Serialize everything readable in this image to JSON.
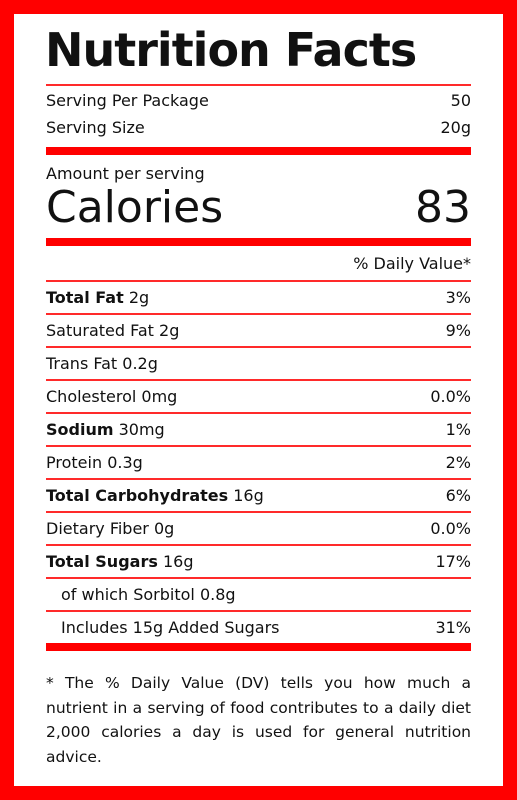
{
  "title": "Nutrition Facts",
  "serving": {
    "per_package_label": "Serving Per Package",
    "per_package_value": "50",
    "size_label": "Serving Size",
    "size_value": "20g"
  },
  "amount_label": "Amount per serving",
  "calories": {
    "label": "Calories",
    "value": "83"
  },
  "daily_value_header": "% Daily Value*",
  "nutrients": [
    {
      "name": "Total Fat",
      "amount": "2g",
      "dv": "3%"
    },
    {
      "name": "Saturated Fat",
      "amount": "2g",
      "dv": "9%"
    },
    {
      "name": "Trans Fat",
      "amount": "0.2g",
      "dv": ""
    },
    {
      "name": "Cholesterol",
      "amount": "0mg",
      "dv": "0.0%"
    },
    {
      "name": "Sodium",
      "amount": "30mg",
      "dv": "1%"
    },
    {
      "name": "Protein",
      "amount": "0.3g",
      "dv": "2%"
    },
    {
      "name": "Total Carbohydrates",
      "amount": "16g",
      "dv": "6%"
    },
    {
      "name": "Dietary Fiber",
      "amount": "0g",
      "dv": "0.0%"
    },
    {
      "name": "Total Sugars",
      "amount": "16g",
      "dv": "17%"
    },
    {
      "name": "of which Sorbitol",
      "amount": "0.8g",
      "dv": ""
    },
    {
      "name": "Includes 15g Added Sugars",
      "amount": "",
      "dv": "31%"
    }
  ],
  "footnote": "* The % Daily Value (DV) tells you how much a nutrient in a serving of food contributes to a daily diet 2,000 calories a day is used for general nutrition advice.",
  "colors": {
    "border": "#ff0000",
    "text": "#111111",
    "background": "#ffffff"
  }
}
